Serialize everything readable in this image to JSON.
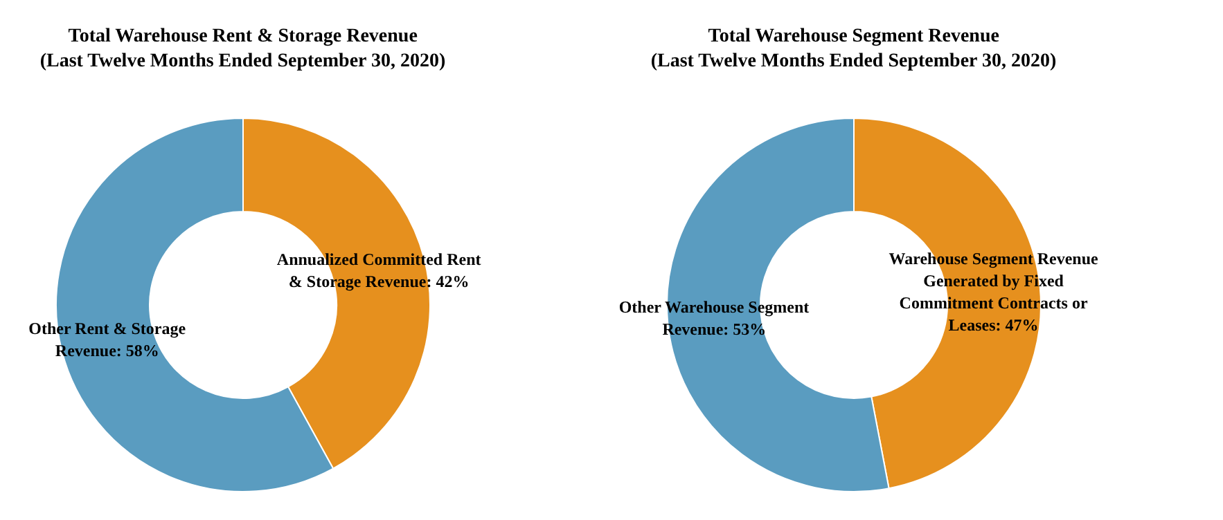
{
  "chart_data": [
    {
      "type": "donut",
      "title": "Total Warehouse Rent & Storage Revenue",
      "subtitle": "(Last Twelve Months Ended September 30, 2020)",
      "categories": [
        "Annualized Committed Rent & Storage Revenue",
        "Other Rent & Storage Revenue"
      ],
      "values": [
        42,
        58
      ],
      "colors": [
        "#e6901e",
        "#5a9cc0"
      ],
      "value_labels": [
        "42%",
        "58%"
      ]
    },
    {
      "type": "donut",
      "title": "Total Warehouse Segment Revenue",
      "subtitle": "(Last Twelve Months Ended September 30, 2020)",
      "categories": [
        "Warehouse Segment Revenue Generated by Fixed Commitment Contracts or Leases",
        "Other Warehouse Segment Revenue"
      ],
      "values": [
        47,
        53
      ],
      "colors": [
        "#e6901e",
        "#5a9cc0"
      ],
      "value_labels": [
        "47%",
        "53%"
      ]
    }
  ]
}
